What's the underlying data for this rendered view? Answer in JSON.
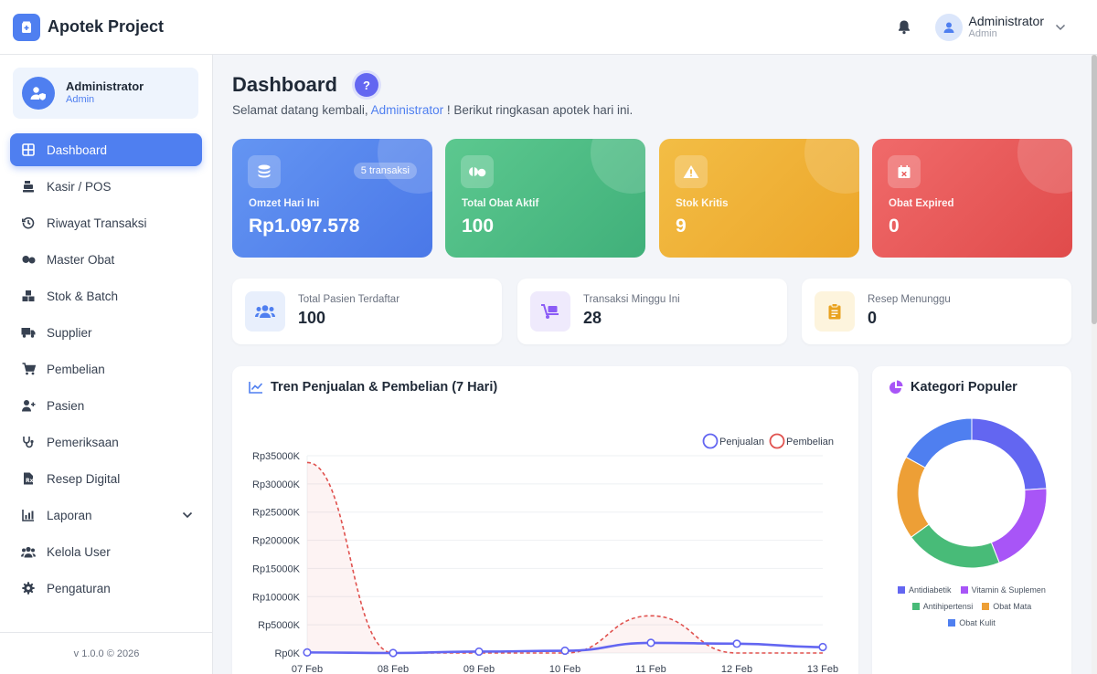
{
  "app": {
    "title": "Apotek Project"
  },
  "topbar": {
    "user_name": "Administrator",
    "user_role": "Admin"
  },
  "sidebar": {
    "profile": {
      "name": "Administrator",
      "role": "Admin"
    },
    "items": [
      {
        "label": "Dashboard",
        "icon": "dashboard-icon"
      },
      {
        "label": "Kasir / POS",
        "icon": "cash-register-icon"
      },
      {
        "label": "Riwayat Transaksi",
        "icon": "history-icon"
      },
      {
        "label": "Master Obat",
        "icon": "pills-icon"
      },
      {
        "label": "Stok & Batch",
        "icon": "boxes-icon"
      },
      {
        "label": "Supplier",
        "icon": "truck-icon"
      },
      {
        "label": "Pembelian",
        "icon": "cart-icon"
      },
      {
        "label": "Pasien",
        "icon": "patient-icon"
      },
      {
        "label": "Pemeriksaan",
        "icon": "stethoscope-icon"
      },
      {
        "label": "Resep Digital",
        "icon": "prescription-icon"
      },
      {
        "label": "Laporan",
        "icon": "report-icon"
      },
      {
        "label": "Kelola User",
        "icon": "users-icon"
      },
      {
        "label": "Pengaturan",
        "icon": "gear-icon"
      }
    ],
    "version": "v 1.0.0 © 2026"
  },
  "header": {
    "title": "Dashboard",
    "help": "?",
    "greeting_prefix": "Selamat datang kembali,",
    "greeting_name": "Administrator",
    "greeting_suffix": "! Berikut ringkasan apotek hari ini."
  },
  "stats": [
    {
      "label": "Omzet Hari Ini",
      "value": "Rp1.097.578",
      "badge": "5 transaksi",
      "icon": "coins-icon",
      "color": "#5688ee"
    },
    {
      "label": "Total Obat Aktif",
      "value": "100",
      "icon": "pills-icon",
      "color": "#4fbd84"
    },
    {
      "label": "Stok Kritis",
      "value": "9",
      "icon": "warning-icon",
      "color": "#f0b236"
    },
    {
      "label": "Obat Expired",
      "value": "0",
      "icon": "calendar-x-icon",
      "color": "#e85a5a"
    }
  ],
  "mini_stats": [
    {
      "label": "Total Pasien Terdaftar",
      "value": "100",
      "icon": "users-icon"
    },
    {
      "label": "Transaksi Minggu Ini",
      "value": "28",
      "icon": "dolly-icon"
    },
    {
      "label": "Resep Menunggu",
      "value": "0",
      "icon": "clipboard-icon"
    }
  ],
  "trend_panel": {
    "title": "Tren Penjualan & Pembelian (7 Hari)",
    "icon": "chart-line-icon"
  },
  "category_panel": {
    "title": "Kategori Populer",
    "icon": "pie-icon"
  },
  "chart_data": [
    {
      "type": "line",
      "x": [
        "07 Feb",
        "08 Feb",
        "09 Feb",
        "10 Feb",
        "11 Feb",
        "12 Feb",
        "13 Feb"
      ],
      "ylim": [
        0,
        35000
      ],
      "yticks": [
        "Rp0K",
        "Rp5000K",
        "Rp10000K",
        "Rp15000K",
        "Rp20000K",
        "Rp25000K",
        "Rp30000K",
        "Rp35000K"
      ],
      "legend_position": "top-right",
      "series": [
        {
          "name": "Penjualan",
          "color": "#6366f1",
          "values": [
            100,
            0,
            250,
            400,
            1800,
            1650,
            1050
          ]
        },
        {
          "name": "Pembelian",
          "color": "#e0524f",
          "values": [
            33800,
            0,
            0,
            0,
            6600,
            0,
            0
          ]
        }
      ]
    },
    {
      "type": "pie",
      "categories": [
        "Antidiabetik",
        "Vitamin & Suplemen",
        "Antihipertensi",
        "Obat Mata",
        "Obat Kulit"
      ],
      "values": [
        24,
        20,
        21,
        18,
        17
      ],
      "colors": [
        "#6366f1",
        "#a855f7",
        "#48bb78",
        "#ed9f36",
        "#4f7ff0"
      ],
      "legend_position": "bottom"
    }
  ]
}
